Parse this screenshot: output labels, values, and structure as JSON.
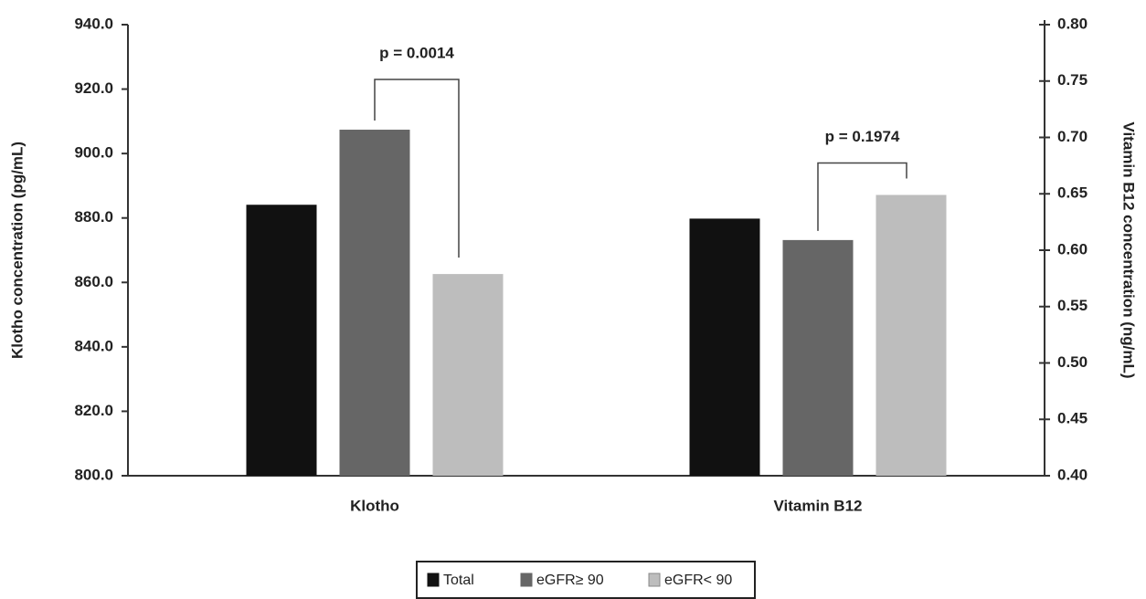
{
  "chart_data": {
    "type": "bar",
    "categories": [
      "Klotho",
      "Vitamin B12"
    ],
    "category_axis": [
      "y",
      "y2"
    ],
    "series": [
      {
        "name": "Total",
        "color": "#111111",
        "values": [
          884.1,
          0.628
        ]
      },
      {
        "name": "eGFR≥ 90",
        "color": "#666666",
        "values": [
          907.4,
          0.609
        ]
      },
      {
        "name": "eGFR< 90",
        "color": "#bdbdbd",
        "values": [
          862.6,
          0.649
        ]
      }
    ],
    "ylabel": "Klotho concentration (pg/mL)",
    "y2label": "Vitamin B12 concentration (ng/mL)",
    "ylim": [
      800,
      940
    ],
    "yticks": [
      {
        "value": 800,
        "label": "800.0"
      },
      {
        "value": 820,
        "label": "820.0"
      },
      {
        "value": 840,
        "label": "840.0"
      },
      {
        "value": 860,
        "label": "860.0"
      },
      {
        "value": 880,
        "label": "880.0"
      },
      {
        "value": 900,
        "label": "900.0"
      },
      {
        "value": 920,
        "label": "920.0"
      },
      {
        "value": 940,
        "label": "940.0"
      }
    ],
    "y2lim": [
      0.4,
      0.8
    ],
    "y2ticks": [
      {
        "value": 0.4,
        "label": "0.40"
      },
      0.45,
      {
        "value": 0.5,
        "label": "0.50"
      },
      0.55,
      {
        "value": 0.6,
        "label": "0.60"
      },
      0.65,
      {
        "value": 0.7,
        "label": "0.70"
      },
      0.75,
      {
        "value": 0.8,
        "label": "0.80"
      }
    ],
    "annotations": [
      "p = 0.0014",
      "p = 0.1974"
    ],
    "grid": false,
    "legend": "bottom"
  }
}
